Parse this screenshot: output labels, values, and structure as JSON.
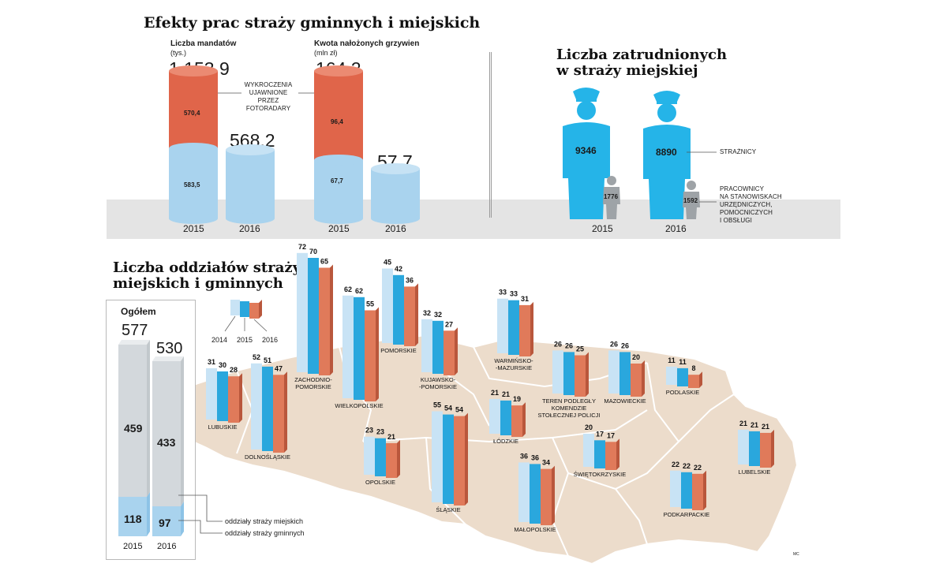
{
  "colors": {
    "light_blue": "#a9d3ee",
    "mid_blue": "#2aa7dd",
    "orange": "#e07a5a",
    "red": "#e0654a",
    "grey_figure": "#9ea3a7",
    "cyan_figure": "#25b4e8",
    "map_fill": "#ecdccb",
    "floor": "#e2e2e2"
  },
  "effects": {
    "title": "Efekty prac straży gminnych i miejskich",
    "mandates": {
      "label": "Liczba mandatów",
      "unit": "(tys.)",
      "total_2015": "1 153,9",
      "total_2016": "568,2",
      "top_2015": "570,4",
      "bottom_2015": "583,5",
      "years": [
        "2015",
        "2016"
      ]
    },
    "fines": {
      "label": "Kwota nałożonych grzywien",
      "unit": "(mln zł)",
      "total_2015": "164,2",
      "total_2016": "57,7",
      "top_2015": "96,4",
      "bottom_2015": "67,7",
      "years": [
        "2015",
        "2016"
      ]
    },
    "note": [
      "WYKROCZENIA",
      "UJAWNIONE",
      "PRZEZ FOTORADARY"
    ]
  },
  "employed": {
    "title_line1": "Liczba zatrudnionych",
    "title_line2": "w straży miejskiej",
    "guards_2015": "9346",
    "guards_2016": "8890",
    "staff_2015": "1776",
    "staff_2016": "1592",
    "years": [
      "2015",
      "2016"
    ],
    "label_guards": "STRAŻNICY",
    "label_staff": [
      "PRACOWNICY",
      "NA STANOWISKACH",
      "URZĘDNICZYCH,",
      "POMOCNICZYCH",
      "I OBSŁUGI"
    ]
  },
  "units": {
    "title_line1": "Liczba oddziałów straży",
    "title_line2": "miejskich i gminnych",
    "total_label": "Ogółem",
    "legend_years": [
      "2014",
      "2015",
      "2016"
    ],
    "legend_city": "oddziały straży miejskich",
    "legend_commune": "oddziały straży gminnych",
    "credit": "MC"
  },
  "chart_data": [
    {
      "type": "bar",
      "title": "Liczba mandatów",
      "unit": "(tys.)",
      "categories": [
        "2015",
        "2016"
      ],
      "series": [
        {
          "name": "WYKROCZENIA UJAWNIONE PRZEZ FOTORADARY",
          "values": [
            570.4,
            null
          ]
        }
      ],
      "totals": [
        1153.9,
        568.2
      ],
      "other_part_2015": 583.5
    },
    {
      "type": "bar",
      "title": "Kwota nałożonych grzywien",
      "unit": "(mln zł)",
      "categories": [
        "2015",
        "2016"
      ],
      "series": [
        {
          "name": "WYKROCZENIA UJAWNIONE PRZEZ FOTORADARY",
          "values": [
            96.4,
            null
          ]
        }
      ],
      "totals": [
        164.2,
        57.7
      ],
      "other_part_2015": 67.7
    },
    {
      "type": "bar",
      "title": "Liczba zatrudnionych w straży miejskiej",
      "categories": [
        "2015",
        "2016"
      ],
      "series": [
        {
          "name": "STRAŻNICY",
          "values": [
            9346,
            8890
          ]
        },
        {
          "name": "PRACOWNICY NA STANOWISKACH URZĘDNICZYCH, POMOCNICZYCH I OBSŁUGI",
          "values": [
            1776,
            1592
          ]
        }
      ]
    },
    {
      "type": "bar",
      "title": "Ogółem",
      "categories": [
        "2015",
        "2016"
      ],
      "totals": [
        577,
        530
      ],
      "series": [
        {
          "name": "oddziały straży miejskich",
          "values": [
            118,
            97
          ]
        },
        {
          "name": "oddziały straży gminnych",
          "values": [
            459,
            433
          ]
        }
      ]
    },
    {
      "type": "bar",
      "title": "Liczba oddziałów straży miejskich i gminnych",
      "series_years": [
        "2014",
        "2015",
        "2016"
      ],
      "regions": [
        {
          "name": "LUBUSKIE",
          "values": [
            31,
            30,
            28
          ]
        },
        {
          "name": "DOLNOŚLĄSKIE",
          "values": [
            52,
            51,
            47
          ]
        },
        {
          "name": "ZACHODNIO-POMORSKIE",
          "values": [
            72,
            70,
            65
          ]
        },
        {
          "name": "WIELKOPOLSKIE",
          "values": [
            62,
            62,
            55
          ]
        },
        {
          "name": "POMORSKIE",
          "values": [
            45,
            42,
            36
          ]
        },
        {
          "name": "KUJAWSKO-POMORSKIE",
          "values": [
            32,
            32,
            27
          ]
        },
        {
          "name": "WARMIŃSKO-MAZURSKIE",
          "values": [
            33,
            33,
            31
          ]
        },
        {
          "name": "TEREN PODLEGŁY KOMENDZIE STOŁECZNEJ POLICJI",
          "values": [
            26,
            26,
            25
          ]
        },
        {
          "name": "MAZOWIECKIE",
          "values": [
            26,
            26,
            20
          ]
        },
        {
          "name": "PODLASKIE",
          "values": [
            11,
            11,
            8
          ]
        },
        {
          "name": "ŁÓDZKIE",
          "values": [
            21,
            21,
            19
          ]
        },
        {
          "name": "OPOLSKIE",
          "values": [
            23,
            23,
            21
          ]
        },
        {
          "name": "ŚLĄSKIE",
          "values": [
            55,
            54,
            54
          ]
        },
        {
          "name": "ŚWIĘTOKRZYSKIE",
          "values": [
            20,
            17,
            17
          ]
        },
        {
          "name": "LUBELSKIE",
          "values": [
            21,
            21,
            21
          ]
        },
        {
          "name": "MAŁOPOLSKIE",
          "values": [
            36,
            36,
            34
          ]
        },
        {
          "name": "PODKARPACKIE",
          "values": [
            22,
            22,
            22
          ]
        }
      ]
    }
  ]
}
